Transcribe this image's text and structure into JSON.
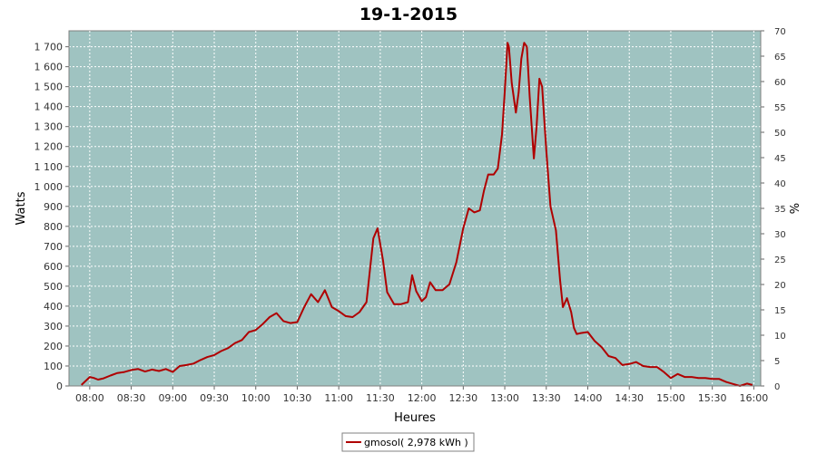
{
  "chart_data": {
    "type": "line",
    "title": "19-1-2015",
    "xlabel": "Heures",
    "ylabel": "Watts",
    "y2label": "%",
    "xlim": [
      "07:45",
      "16:05"
    ],
    "ylim": [
      0,
      1780
    ],
    "y2lim": [
      0,
      70
    ],
    "x_ticks": [
      "08:00",
      "08:30",
      "09:00",
      "09:30",
      "10:00",
      "10:30",
      "11:00",
      "11:30",
      "12:00",
      "12:30",
      "13:00",
      "13:30",
      "14:00",
      "14:30",
      "15:00",
      "15:30",
      "16:00"
    ],
    "y_ticks": [
      "0",
      "100",
      "200",
      "300",
      "400",
      "500",
      "600",
      "700",
      "800",
      "900",
      "1 000",
      "1 100",
      "1 200",
      "1 300",
      "1 400",
      "1 500",
      "1 600",
      "1 700"
    ],
    "y2_ticks": [
      "0",
      "5",
      "10",
      "15",
      "20",
      "25",
      "30",
      "35",
      "40",
      "45",
      "50",
      "55",
      "60",
      "65",
      "70"
    ],
    "grid": true,
    "plot_background": "#9fc3c1",
    "series_color": "#b00000",
    "legend_position": "bottom-center",
    "series": [
      {
        "name": "gmosol( 2,978 kWh )",
        "x": [
          "07:54",
          "07:57",
          "08:00",
          "08:03",
          "08:06",
          "08:10",
          "08:15",
          "08:20",
          "08:25",
          "08:30",
          "08:35",
          "08:40",
          "08:45",
          "08:50",
          "08:55",
          "09:00",
          "09:05",
          "09:10",
          "09:15",
          "09:20",
          "09:25",
          "09:30",
          "09:35",
          "09:40",
          "09:45",
          "09:50",
          "09:55",
          "10:00",
          "10:05",
          "10:10",
          "10:15",
          "10:20",
          "10:25",
          "10:30",
          "10:35",
          "10:40",
          "10:45",
          "10:50",
          "10:55",
          "11:00",
          "11:05",
          "11:10",
          "11:15",
          "11:20",
          "11:25",
          "11:28",
          "11:32",
          "11:35",
          "11:40",
          "11:45",
          "11:50",
          "11:53",
          "11:56",
          "12:00",
          "12:03",
          "12:06",
          "12:10",
          "12:15",
          "12:20",
          "12:25",
          "12:30",
          "12:34",
          "12:38",
          "12:42",
          "12:45",
          "12:48",
          "12:52",
          "12:55",
          "12:58",
          "13:00",
          "13:02",
          "13:03",
          "13:05",
          "13:08",
          "13:10",
          "13:12",
          "13:14",
          "13:16",
          "13:18",
          "13:21",
          "13:23",
          "13:25",
          "13:27",
          "13:30",
          "13:33",
          "13:37",
          "13:40",
          "13:42",
          "13:45",
          "13:48",
          "13:50",
          "13:52",
          "13:55",
          "14:00",
          "14:05",
          "14:10",
          "14:15",
          "14:20",
          "14:25",
          "14:30",
          "14:35",
          "14:40",
          "14:45",
          "14:50",
          "14:55",
          "15:00",
          "15:05",
          "15:10",
          "15:15",
          "15:20",
          "15:25",
          "15:30",
          "15:35",
          "15:40",
          "15:45",
          "15:50",
          "15:55",
          "15:59"
        ],
        "y": [
          5,
          25,
          45,
          40,
          32,
          38,
          52,
          65,
          70,
          80,
          85,
          72,
          82,
          75,
          85,
          70,
          100,
          105,
          112,
          130,
          145,
          155,
          175,
          190,
          215,
          230,
          270,
          280,
          310,
          345,
          365,
          325,
          315,
          320,
          395,
          460,
          420,
          480,
          395,
          375,
          350,
          345,
          370,
          420,
          740,
          790,
          630,
          470,
          410,
          410,
          420,
          555,
          475,
          425,
          445,
          520,
          480,
          480,
          510,
          620,
          790,
          890,
          870,
          880,
          980,
          1060,
          1060,
          1090,
          1260,
          1480,
          1720,
          1700,
          1520,
          1370,
          1470,
          1640,
          1720,
          1700,
          1450,
          1140,
          1300,
          1540,
          1500,
          1180,
          900,
          780,
          530,
          395,
          440,
          370,
          290,
          260,
          265,
          270,
          225,
          195,
          150,
          140,
          105,
          110,
          120,
          100,
          95,
          95,
          70,
          40,
          60,
          45,
          45,
          40,
          40,
          35,
          35,
          20,
          10,
          0,
          12,
          5
        ]
      }
    ]
  }
}
